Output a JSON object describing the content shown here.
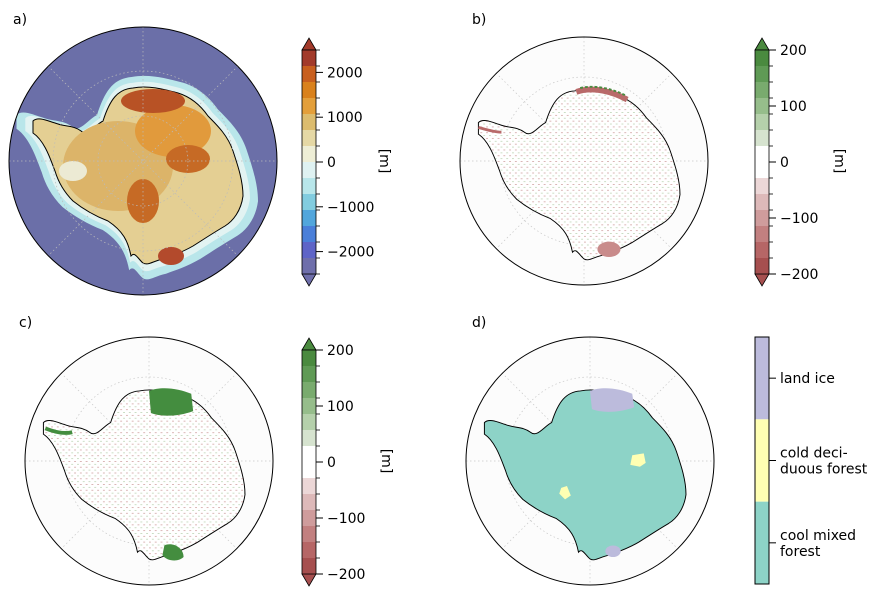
{
  "chart_data": [
    {
      "panel": "a)",
      "type": "heatmap",
      "projection": "south polar stereographic",
      "colorbar": {
        "unit": "[m]",
        "ticks": [
          2000,
          1000,
          0,
          -1000,
          -2000
        ],
        "tick_labels": [
          "2000",
          "1000",
          "0",
          "−1000",
          "−2000"
        ],
        "range": [
          -2500,
          2500
        ],
        "extend": "both",
        "colors_top_to_bottom": [
          "#a23a2a",
          "#c85f1e",
          "#d9811c",
          "#e39f3b",
          "#dcbc6e",
          "#e5d8a5",
          "#eeeed6",
          "#dff2f2",
          "#b8e6ea",
          "#82ccdf",
          "#52a6dc",
          "#4a7fd9",
          "#5e64c7",
          "#6f6fab"
        ]
      }
    },
    {
      "panel": "b)",
      "type": "heatmap",
      "projection": "south polar stereographic",
      "colorbar": {
        "unit": "[m]",
        "ticks": [
          200,
          100,
          0,
          -100,
          -200
        ],
        "tick_labels": [
          "200",
          "100",
          "0",
          "−100",
          "−200"
        ],
        "range": [
          -200,
          200
        ],
        "extend": "both",
        "colors_top_to_bottom": [
          "#4a8a3f",
          "#5f9a55",
          "#79ab6e",
          "#96bd8b",
          "#b5d0ab",
          "#d6e3cf",
          "#ffffff",
          "#ffffff",
          "#ecd7d7",
          "#ddb9b9",
          "#cf9c9c",
          "#c28080",
          "#b66666",
          "#a64f4f"
        ]
      }
    },
    {
      "panel": "c)",
      "type": "heatmap",
      "projection": "south polar stereographic",
      "colorbar": {
        "unit": "[m]",
        "ticks": [
          200,
          100,
          0,
          -100,
          -200
        ],
        "tick_labels": [
          "200",
          "100",
          "0",
          "−100",
          "−200"
        ],
        "range": [
          -200,
          200
        ],
        "extend": "both",
        "colors_top_to_bottom": [
          "#4a8a3f",
          "#5f9a55",
          "#79ab6e",
          "#96bd8b",
          "#b5d0ab",
          "#d6e3cf",
          "#ffffff",
          "#ffffff",
          "#ecd7d7",
          "#ddb9b9",
          "#cf9c9c",
          "#c28080",
          "#b66666",
          "#a64f4f"
        ]
      }
    },
    {
      "panel": "d)",
      "type": "heatmap",
      "projection": "south polar stereographic",
      "legend": {
        "categories": [
          {
            "label": "land ice",
            "color": "#bcbbdc"
          },
          {
            "label": "cold deci-\nduous forest",
            "color": "#ffffb3"
          },
          {
            "label": "cool mixed\nforest",
            "color": "#8dd3c7"
          }
        ]
      }
    }
  ]
}
